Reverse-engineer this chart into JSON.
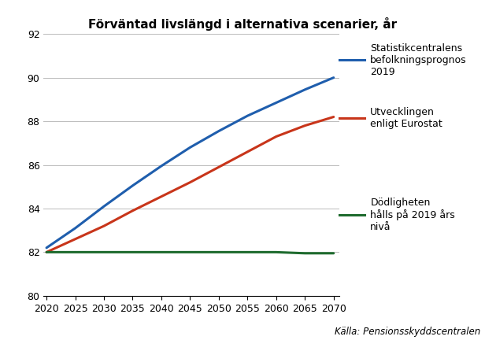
{
  "title": "Förväntad livslängd i alternativa scenarier, år",
  "source": "Källa: Pensionsskyddscentralen",
  "x_years": [
    2020,
    2025,
    2030,
    2035,
    2040,
    2045,
    2050,
    2055,
    2060,
    2065,
    2070
  ],
  "blue_values": [
    82.2,
    83.1,
    84.1,
    85.05,
    85.95,
    86.8,
    87.55,
    88.25,
    88.85,
    89.45,
    90.0
  ],
  "red_values": [
    82.0,
    82.6,
    83.2,
    83.9,
    84.55,
    85.2,
    85.9,
    86.6,
    87.3,
    87.8,
    88.2
  ],
  "green_values": [
    82.0,
    82.0,
    82.0,
    82.0,
    82.0,
    82.0,
    82.0,
    82.0,
    82.0,
    81.95,
    81.95
  ],
  "blue_color": "#1F5EAD",
  "red_color": "#C8351A",
  "green_color": "#1E6B2E",
  "line_width": 2.2,
  "ylim": [
    80,
    92
  ],
  "yticks": [
    80,
    82,
    84,
    86,
    88,
    90,
    92
  ],
  "xticks": [
    2020,
    2025,
    2030,
    2035,
    2040,
    2045,
    2050,
    2055,
    2060,
    2065,
    2070
  ],
  "label_blue": "Statistikcentralens\nbefolkningsprognos\n2019",
  "label_red": "Utvecklingen\nenligt Eurostat",
  "label_green": "Dödligheten\nhålls på 2019 års\nnivå",
  "bg_color": "#FFFFFF",
  "grid_color": "#BBBBBB",
  "title_fontsize": 11,
  "label_fontsize": 9,
  "tick_fontsize": 9,
  "source_fontsize": 8.5
}
